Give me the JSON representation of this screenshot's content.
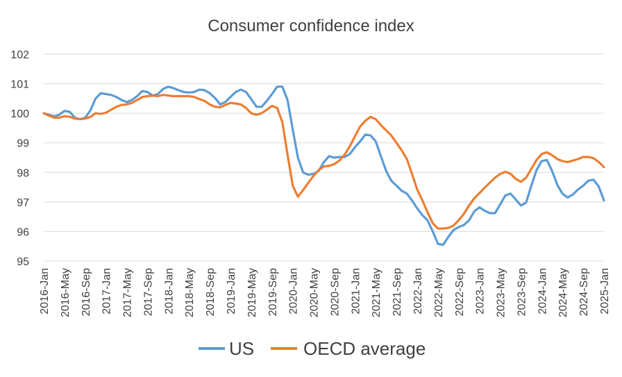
{
  "chart_data": {
    "type": "line",
    "title": "Consumer confidence index",
    "xlabel": "",
    "ylabel": "",
    "ylim": [
      95,
      102
    ],
    "yticks": [
      "95",
      "96",
      "97",
      "98",
      "99",
      "100",
      "101",
      "102"
    ],
    "xtick_labels": [
      "2016-Jan",
      "2016-May",
      "2016-Sep",
      "2017-Jan",
      "2017-May",
      "2017-Sep",
      "2018-Jan",
      "2018-May",
      "2018-Sep",
      "2019-Jan",
      "2019-May",
      "2019-Sep",
      "2020-Jan",
      "2020-May",
      "2020-Sep",
      "2021-Jan",
      "2021-May",
      "2021-Sep",
      "2022-Jan",
      "2022-May",
      "2022-Sep",
      "2023-Jan",
      "2023-May",
      "2023-Sep",
      "2024-Jan",
      "2024-May",
      "2024-Sep",
      "2025-Jan"
    ],
    "grid": true,
    "legend_position": "bottom",
    "series": [
      {
        "name": "US",
        "color": "#5b9bd5",
        "values": [
          100.0,
          99.95,
          99.9,
          99.95,
          100.08,
          100.05,
          99.85,
          99.8,
          99.85,
          100.1,
          100.5,
          100.68,
          100.65,
          100.62,
          100.55,
          100.45,
          100.38,
          100.45,
          100.58,
          100.75,
          100.72,
          100.6,
          100.65,
          100.82,
          100.9,
          100.85,
          100.78,
          100.72,
          100.7,
          100.72,
          100.8,
          100.78,
          100.68,
          100.52,
          100.3,
          100.38,
          100.55,
          100.72,
          100.8,
          100.72,
          100.48,
          100.22,
          100.22,
          100.42,
          100.65,
          100.9,
          100.9,
          100.45,
          99.45,
          98.5,
          98.0,
          97.92,
          97.95,
          98.05,
          98.35,
          98.55,
          98.5,
          98.52,
          98.52,
          98.62,
          98.85,
          99.05,
          99.28,
          99.25,
          99.05,
          98.55,
          98.05,
          97.72,
          97.55,
          97.38,
          97.28,
          97.05,
          96.78,
          96.55,
          96.38,
          96.0,
          95.58,
          95.55,
          95.82,
          96.05,
          96.15,
          96.22,
          96.38,
          96.68,
          96.82,
          96.7,
          96.62,
          96.62,
          96.92,
          97.22,
          97.28,
          97.08,
          96.88,
          96.98,
          97.55,
          98.08,
          98.38,
          98.42,
          98.05,
          97.58,
          97.28,
          97.15,
          97.25,
          97.42,
          97.55,
          97.72,
          97.75,
          97.52,
          97.05
        ]
      },
      {
        "name": "OECD average",
        "color": "#ed7d31",
        "values": [
          100.0,
          99.92,
          99.85,
          99.85,
          99.9,
          99.88,
          99.82,
          99.8,
          99.82,
          99.88,
          100.0,
          99.98,
          100.02,
          100.12,
          100.22,
          100.28,
          100.3,
          100.35,
          100.45,
          100.55,
          100.58,
          100.6,
          100.58,
          100.62,
          100.6,
          100.58,
          100.58,
          100.58,
          100.58,
          100.55,
          100.48,
          100.42,
          100.3,
          100.22,
          100.2,
          100.28,
          100.35,
          100.33,
          100.3,
          100.18,
          100.0,
          99.95,
          100.0,
          100.12,
          100.25,
          100.18,
          99.7,
          98.6,
          97.55,
          97.18,
          97.4,
          97.65,
          97.88,
          98.08,
          98.2,
          98.22,
          98.28,
          98.4,
          98.6,
          98.88,
          99.22,
          99.55,
          99.75,
          99.88,
          99.8,
          99.6,
          99.42,
          99.25,
          99.0,
          98.75,
          98.45,
          97.95,
          97.42,
          97.05,
          96.65,
          96.28,
          96.1,
          96.1,
          96.12,
          96.2,
          96.38,
          96.6,
          96.88,
          97.12,
          97.3,
          97.48,
          97.65,
          97.82,
          97.95,
          98.02,
          97.95,
          97.78,
          97.68,
          97.82,
          98.12,
          98.42,
          98.62,
          98.68,
          98.58,
          98.45,
          98.38,
          98.35,
          98.4,
          98.45,
          98.52,
          98.52,
          98.48,
          98.35,
          98.18
        ]
      }
    ]
  }
}
